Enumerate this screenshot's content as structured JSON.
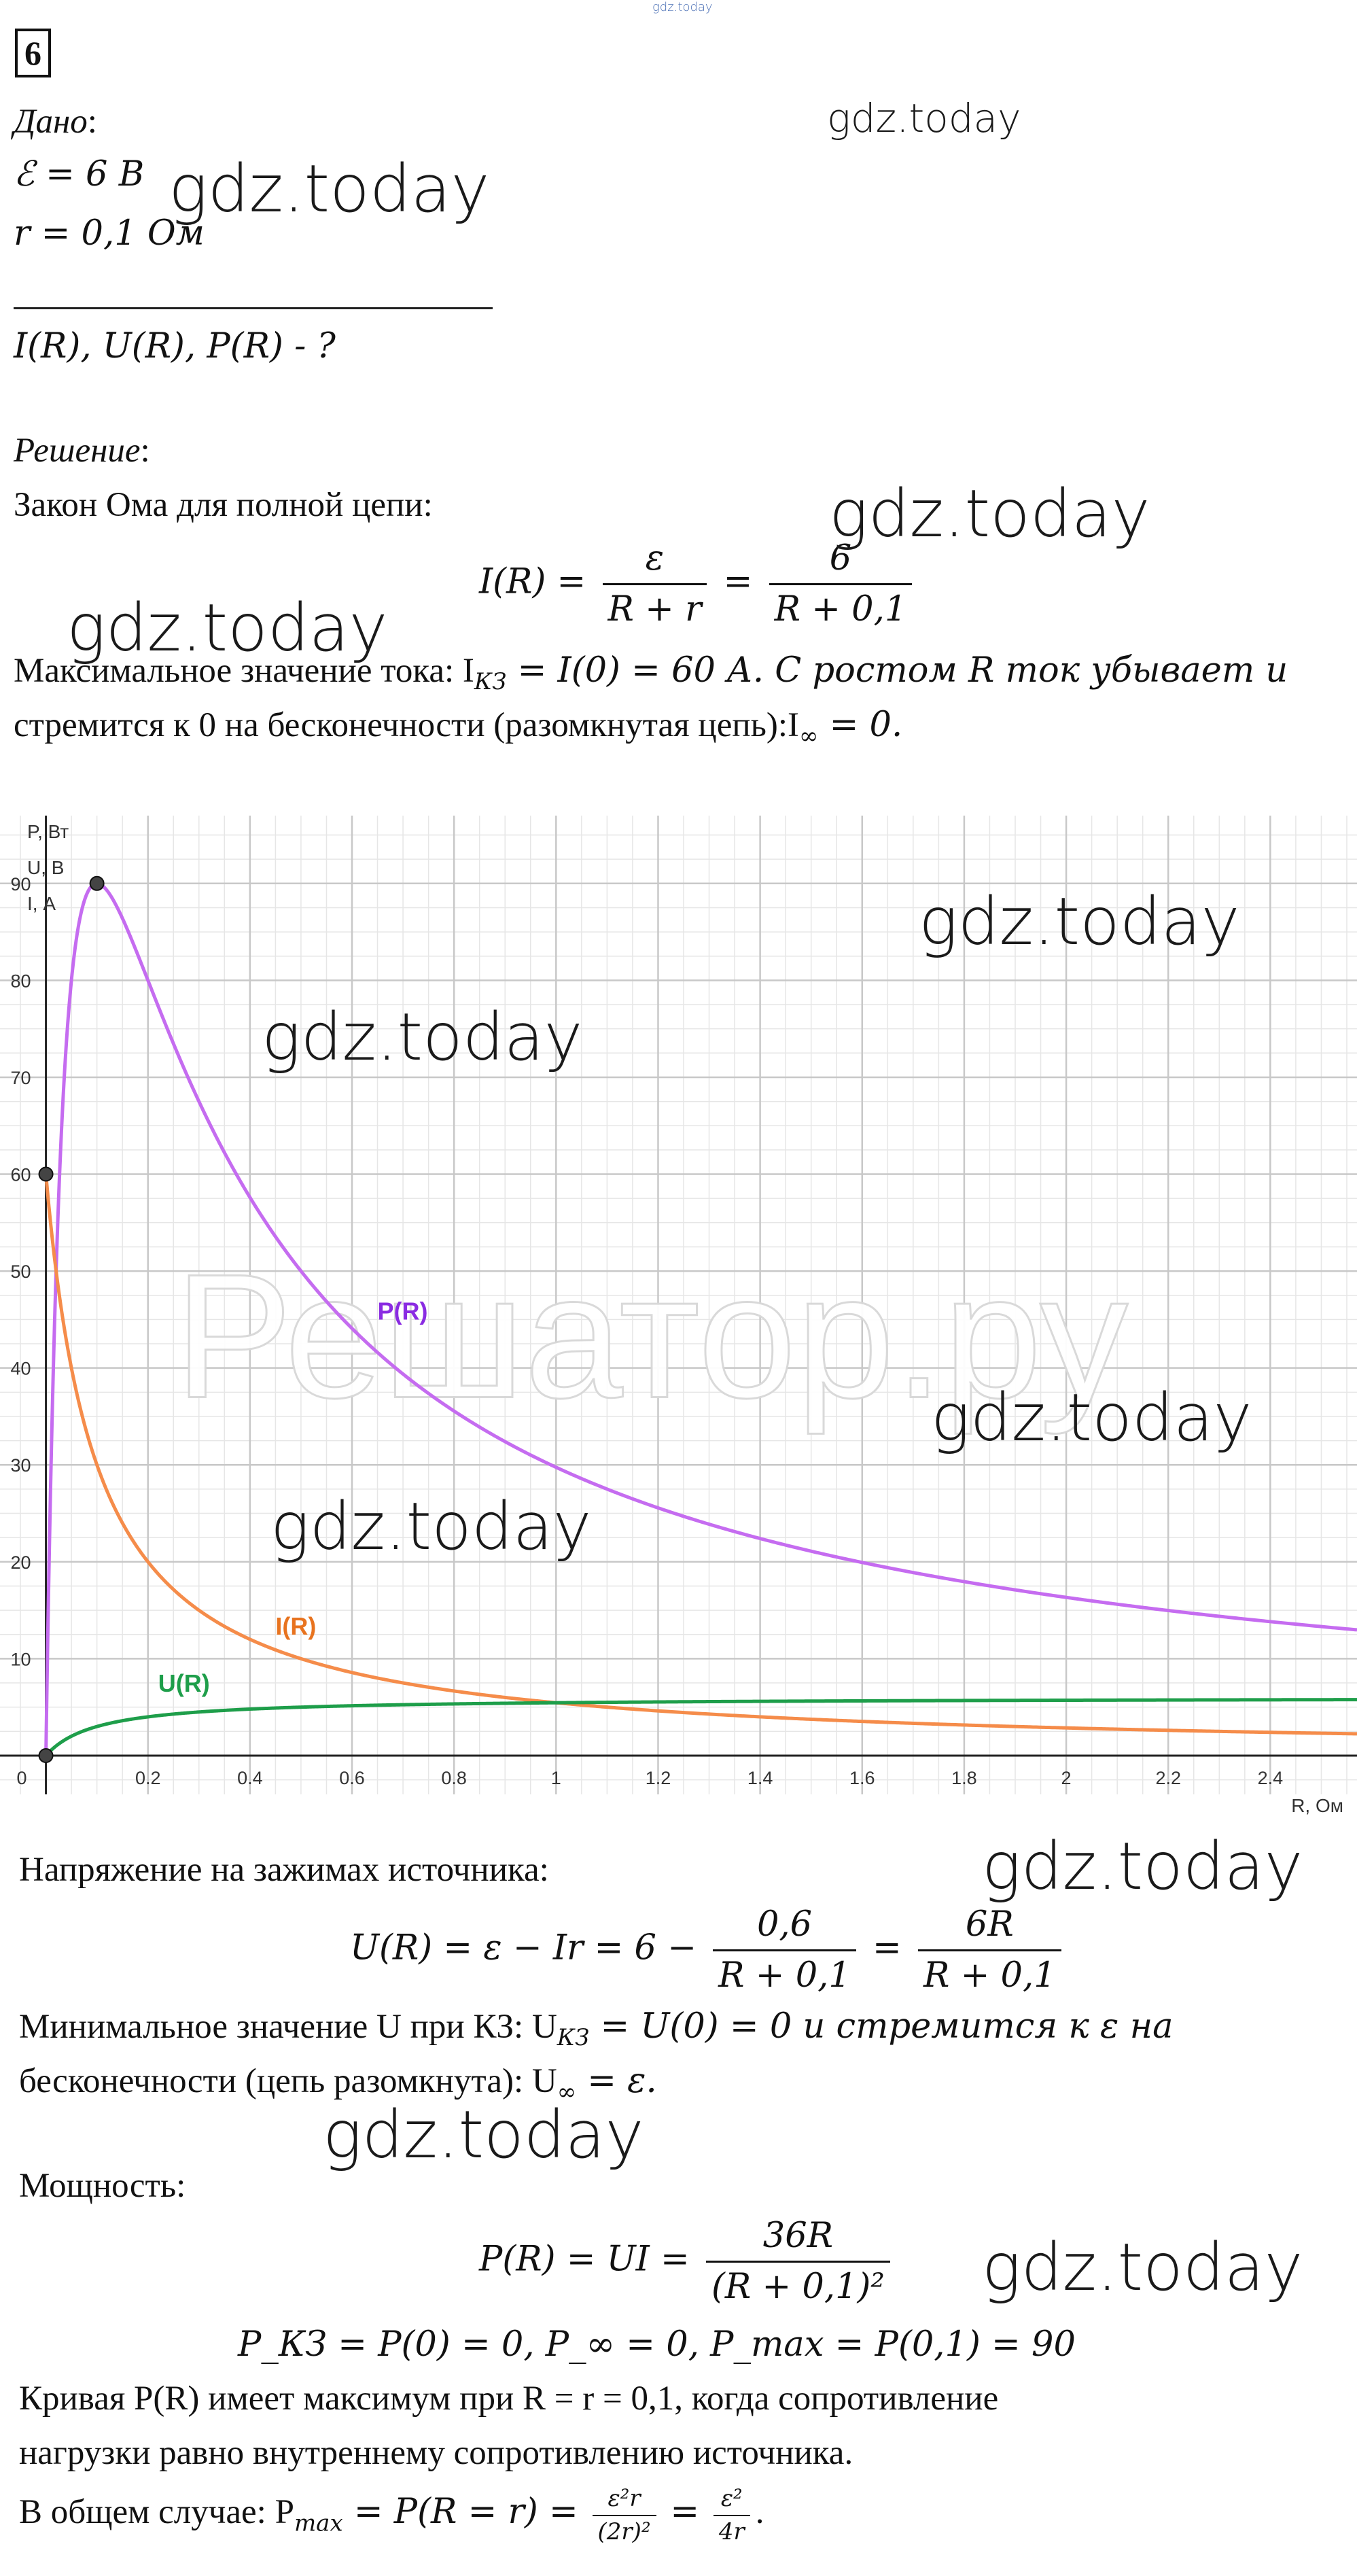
{
  "header": {
    "top_watermark": "gdz.today",
    "problem_number": "6"
  },
  "given": {
    "label": "Дано",
    "colon": ":",
    "emf": "ℰ = 6 В",
    "resistance": "r = 0,1 Ом",
    "find": "I(R), U(R), P(R) - ?"
  },
  "solution": {
    "label": "Решение",
    "colon": ":",
    "ohm_law_title": "Закон Ома для полной цепи:",
    "formula_I_left": "I(R) =",
    "formula_I_num1": "ε",
    "formula_I_den1": "R + r",
    "formula_I_eq": "=",
    "formula_I_num2": "6",
    "formula_I_den2": "R + 0,1",
    "max_current_line1": "Максимальное значение тока: I",
    "max_current_sub": "КЗ",
    "max_current_line1b": " = I(0) = 60 А. С ростом R ток убывает и",
    "max_current_line2": "стремится к 0 на бесконечности (разомкнутая цепь):I",
    "max_current_sub2": "∞",
    "max_current_line2b": " = 0.",
    "voltage_title": "Напряжение на зажимах источника:",
    "formula_U_left": "U(R) = ε − Ir = 6 −",
    "formula_U_num1": "0,6",
    "formula_U_den1": "R + 0,1",
    "formula_U_eq": "=",
    "formula_U_num2": "6R",
    "formula_U_den2": "R + 0,1",
    "min_voltage_line1a": "Минимальное значение U при КЗ: U",
    "min_voltage_sub": "КЗ",
    "min_voltage_line1b": " = U(0) = 0 и стремится к ε на",
    "min_voltage_line2a": "бесконечности (цепь разомкнута): U",
    "min_voltage_sub2": "∞",
    "min_voltage_line2b": " = ε.",
    "power_title": "Мощность:",
    "formula_P_left": "P(R) = UI =",
    "formula_P_num": "36R",
    "formula_P_den": "(R + 0,1)²",
    "power_values": "P_КЗ = P(0) = 0,      P_∞ = 0,      P_max = P(0,1) = 90",
    "max_line1": "Кривая P(R) имеет максимум при R = r = 0,1, когда сопротивление",
    "max_line2": "нагрузки равно внутреннему сопротивлению источника.",
    "general_a": "В общем случае: P",
    "general_sub": "max",
    "general_b": " = P(R = r) =",
    "general_num1": "ε²r",
    "general_den1": "(2r)²",
    "general_eq": "=",
    "general_num2": "ε²",
    "general_den2": "4r",
    "general_end": "."
  },
  "watermarks": [
    "gdz.today",
    "gdz.today",
    "gdz.today",
    "gdz.today",
    "gdz.today",
    "gdz.today",
    "gdz.today",
    "gdz.today",
    "gdz.today",
    "gdz.today",
    "gdz.today"
  ],
  "chart_watermark": "Решатор.ру",
  "colors": {
    "power": "#c56cf0",
    "current": "#f58c4a",
    "voltage": "#1e9e4a",
    "label_power": "#8a2be2",
    "label_current": "#e8731f",
    "label_voltage": "#1e9e4a",
    "grid_major": "#c8c8c8",
    "grid_minor": "#e6e6e6"
  },
  "chart_data": {
    "type": "line",
    "ylabels": [
      "P, Вт",
      "U, В",
      "I, А"
    ],
    "xlabel": "R, Ом",
    "origin_label": "0",
    "xlim": [
      -0.09,
      2.57
    ],
    "ylim": [
      -4,
      97
    ],
    "xticks": [
      0.2,
      0.4,
      0.6,
      0.8,
      1,
      1.2,
      1.4,
      1.6,
      1.8,
      2,
      2.2,
      2.4
    ],
    "xtick_labels": [
      "0.2",
      "0.4",
      "0.6",
      "0.8",
      "1",
      "1.2",
      "1.4",
      "1.6",
      "1.8",
      "2",
      "2.2",
      "2.4"
    ],
    "yticks": [
      10,
      20,
      30,
      40,
      50,
      60,
      70,
      80,
      90
    ],
    "ytick_labels": [
      "10",
      "20",
      "30",
      "40",
      "50",
      "60",
      "70",
      "80",
      "90"
    ],
    "grid": true,
    "series": [
      {
        "name": "P(R)",
        "formula": "36R/(R+0.1)^2",
        "label_at": [
          0.65,
          45
        ]
      },
      {
        "name": "I(R)",
        "formula": "6/(R+0.1)",
        "label_at": [
          0.45,
          12.5
        ]
      },
      {
        "name": "U(R)",
        "formula": "6R/(R+0.1)",
        "label_at": [
          0.22,
          6.6
        ]
      }
    ],
    "points": [
      {
        "x": 0.1,
        "y": 90
      },
      {
        "x": 0,
        "y": 60
      },
      {
        "x": 0,
        "y": 0
      }
    ]
  }
}
